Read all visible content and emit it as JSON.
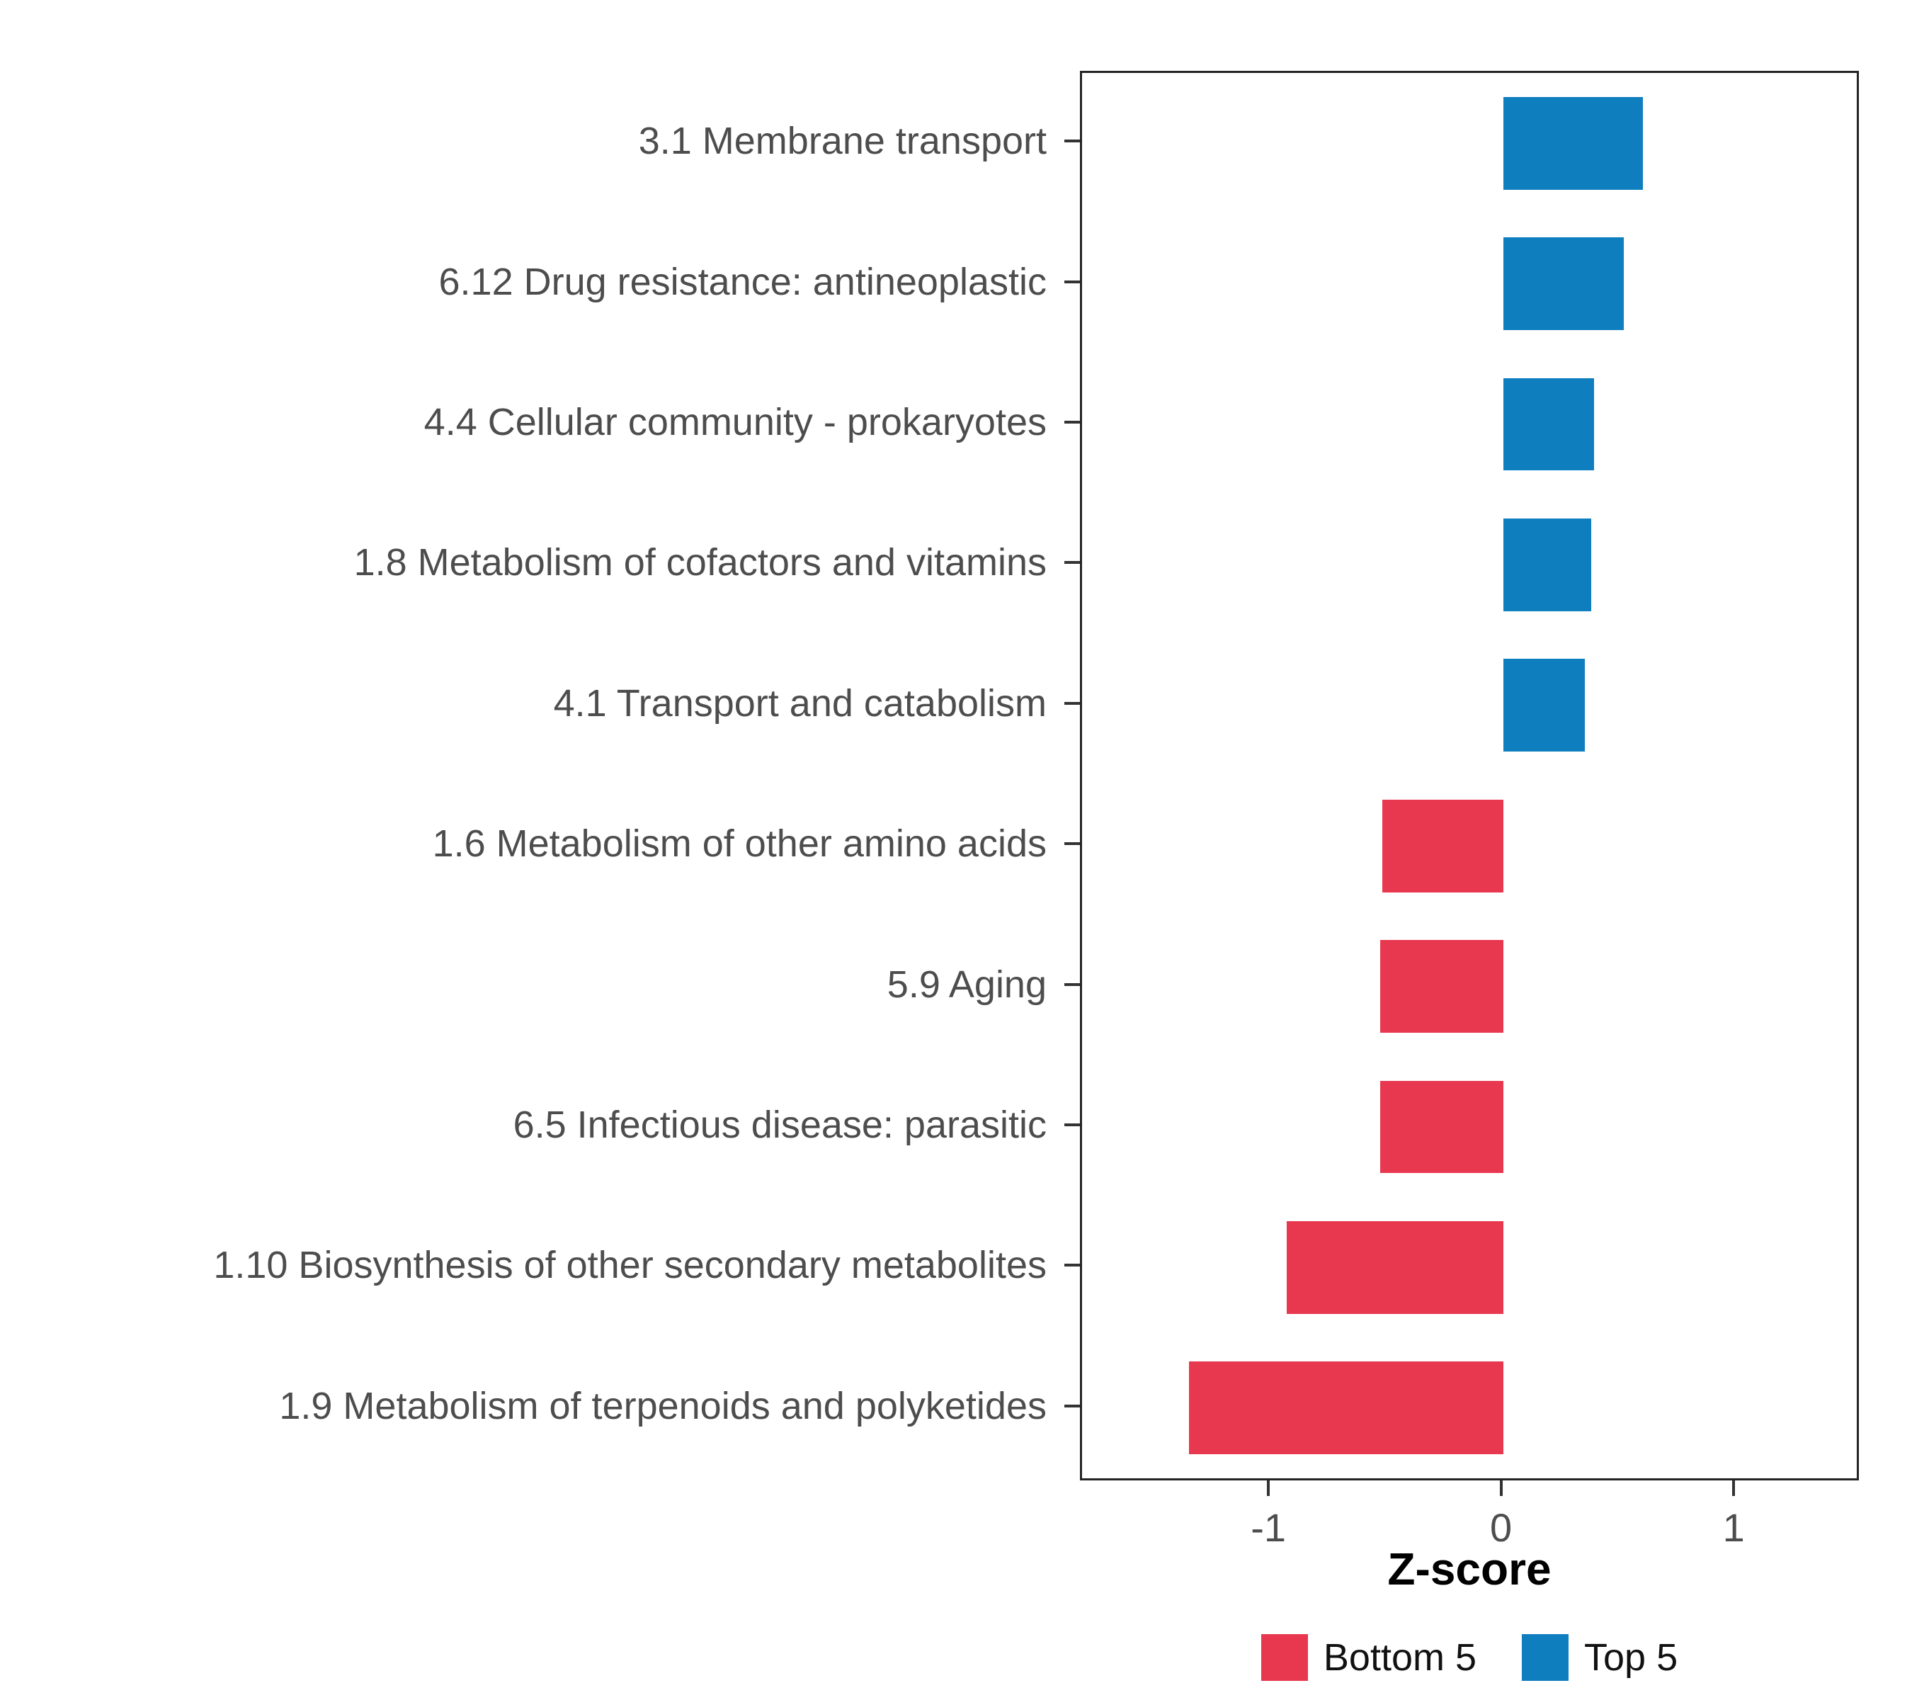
{
  "chart_data": {
    "type": "bar",
    "orientation": "horizontal",
    "title": "",
    "xlabel": "Z-score",
    "ylabel": "",
    "xlim": [
      -1.81,
      1.52
    ],
    "x_ticks": [
      -1,
      0,
      1
    ],
    "x_tick_labels": [
      "-1",
      "0",
      "1"
    ],
    "grid": "off",
    "legend_position": "bottom",
    "categories": [
      "3.1 Membrane transport",
      "6.12 Drug resistance: antineoplastic",
      "4.4 Cellular community - prokaryotes",
      "1.8 Metabolism of cofactors and vitamins",
      "4.1 Transport and catabolism",
      "1.6 Metabolism of other amino acids",
      "5.9 Aging",
      "6.5 Infectious disease: parasitic",
      "1.10 Biosynthesis of other secondary metabolites",
      "1.9 Metabolism of terpenoids and polyketides"
    ],
    "values": [
      0.6,
      0.52,
      0.39,
      0.38,
      0.35,
      -0.52,
      -0.53,
      -0.53,
      -0.93,
      -1.35
    ],
    "groups": [
      "Top 5",
      "Top 5",
      "Top 5",
      "Top 5",
      "Top 5",
      "Bottom 5",
      "Bottom 5",
      "Bottom 5",
      "Bottom 5",
      "Bottom 5"
    ],
    "colors": {
      "Bottom 5": "#E8384F",
      "Top 5": "#0E7EBE"
    },
    "legend": [
      {
        "label": "Bottom 5",
        "color": "#E8384F"
      },
      {
        "label": "Top 5",
        "color": "#0E7EBE"
      }
    ]
  }
}
